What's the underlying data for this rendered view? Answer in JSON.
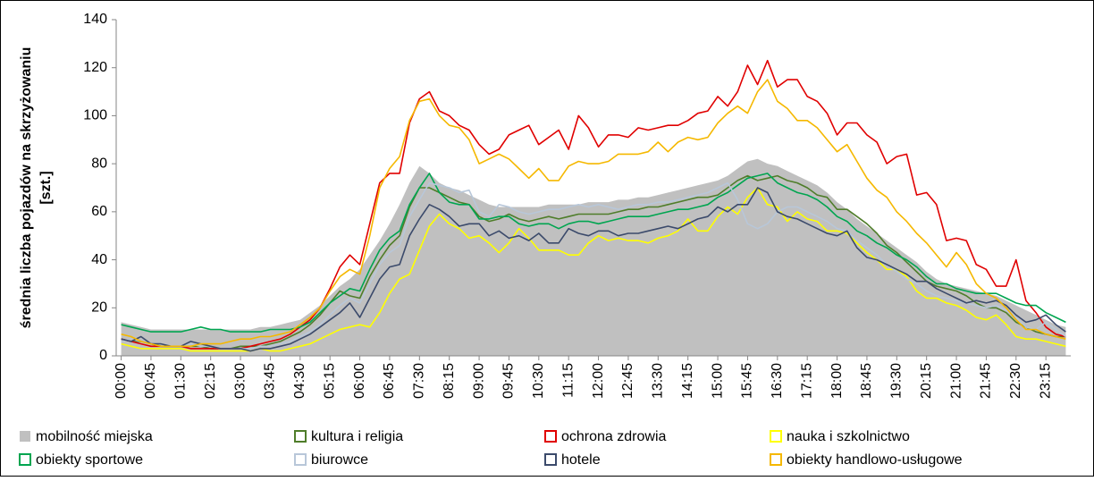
{
  "chart_data": {
    "type": "line",
    "y_label": [
      "średnia liczba pojazdów na skrzyżowaniu",
      "[szt.]"
    ],
    "ylim": [
      0,
      140
    ],
    "yticks": [
      0,
      20,
      40,
      60,
      80,
      100,
      120,
      140
    ],
    "grid": false,
    "legend": "bottom",
    "categories": [
      "00:00",
      null,
      null,
      "00:45",
      null,
      null,
      "01:30",
      null,
      null,
      "02:15",
      null,
      null,
      "03:00",
      null,
      null,
      "03:45",
      null,
      null,
      "04:30",
      null,
      null,
      "05:15",
      null,
      null,
      "06:00",
      null,
      null,
      "06:45",
      null,
      null,
      "07:30",
      null,
      null,
      "08:15",
      null,
      null,
      "09:00",
      null,
      null,
      "09:45",
      null,
      null,
      "10:30",
      null,
      null,
      "11:15",
      null,
      null,
      "12:00",
      null,
      null,
      "12:45",
      null,
      null,
      "13:30",
      null,
      null,
      "14:15",
      null,
      null,
      "15:00",
      null,
      null,
      "15:45",
      null,
      null,
      "16:30",
      null,
      null,
      "17:15",
      null,
      null,
      "18:00",
      null,
      null,
      "18:45",
      null,
      null,
      "19:30",
      null,
      null,
      "20:15",
      null,
      null,
      "21:00",
      null,
      null,
      "21:45",
      null,
      null,
      "22:30",
      null,
      null,
      "23:15",
      null,
      null
    ],
    "series": [
      {
        "name": "mobilność miejska",
        "type": "area",
        "color": "#c0c0c0",
        "values": [
          14,
          13,
          12,
          11,
          11,
          11,
          11,
          11,
          11,
          11,
          11,
          11,
          11,
          11,
          12,
          12,
          13,
          14,
          15,
          18,
          21,
          25,
          29,
          32,
          36,
          42,
          48,
          55,
          63,
          72,
          79,
          76,
          72,
          70,
          69,
          67,
          65,
          63,
          62,
          62,
          62,
          62,
          62,
          63,
          63,
          63,
          63,
          64,
          64,
          64,
          65,
          65,
          66,
          66,
          67,
          68,
          69,
          70,
          71,
          72,
          73,
          75,
          78,
          81,
          82,
          80,
          79,
          77,
          75,
          73,
          71,
          68,
          64,
          61,
          57,
          54,
          51,
          48,
          45,
          42,
          39,
          35,
          32,
          30,
          29,
          28,
          27,
          26,
          25,
          23,
          21,
          19,
          17,
          15,
          13,
          12
        ]
      },
      {
        "name": "kultura i religia",
        "type": "line",
        "color": "#4f7d2a",
        "values": [
          7,
          6,
          6,
          5,
          4,
          4,
          4,
          4,
          4,
          3,
          3,
          3,
          4,
          4,
          4,
          5,
          6,
          8,
          10,
          13,
          17,
          22,
          27,
          25,
          24,
          33,
          40,
          46,
          50,
          62,
          70,
          70,
          68,
          66,
          64,
          63,
          58,
          56,
          57,
          59,
          57,
          56,
          57,
          58,
          57,
          58,
          59,
          59,
          59,
          59,
          60,
          61,
          61,
          62,
          62,
          63,
          64,
          65,
          66,
          66,
          67,
          70,
          73,
          75,
          73,
          74,
          75,
          73,
          72,
          70,
          67,
          66,
          61,
          61,
          58,
          55,
          51,
          46,
          43,
          39,
          35,
          31,
          29,
          28,
          27,
          25,
          22,
          20,
          20,
          18,
          14,
          12,
          10,
          9,
          8,
          8
        ]
      },
      {
        "name": "ochrona zdrowia",
        "type": "line",
        "color": "#e00000",
        "values": [
          7,
          6,
          5,
          4,
          4,
          4,
          4,
          3,
          3,
          3,
          3,
          3,
          3,
          4,
          5,
          6,
          7,
          9,
          12,
          15,
          20,
          28,
          37,
          42,
          38,
          55,
          72,
          76,
          76,
          97,
          107,
          110,
          102,
          100,
          96,
          94,
          88,
          84,
          86,
          92,
          94,
          96,
          88,
          91,
          94,
          86,
          100,
          95,
          87,
          92,
          92,
          91,
          95,
          94,
          95,
          96,
          96,
          98,
          101,
          102,
          108,
          104,
          110,
          121,
          113,
          123,
          112,
          115,
          115,
          108,
          106,
          101,
          92,
          97,
          97,
          92,
          89,
          80,
          83,
          84,
          67,
          68,
          63,
          48,
          49,
          48,
          38,
          36,
          29,
          29,
          40,
          23,
          18,
          12,
          9,
          8
        ]
      },
      {
        "name": "nauka i szkolnictwo",
        "type": "line",
        "color": "#ffff00",
        "values": [
          5,
          4,
          3,
          3,
          3,
          3,
          3,
          2,
          2,
          2,
          2,
          2,
          2,
          2,
          3,
          2,
          2,
          3,
          4,
          5,
          7,
          9,
          11,
          12,
          13,
          12,
          18,
          26,
          32,
          34,
          44,
          54,
          59,
          55,
          53,
          49,
          50,
          47,
          43,
          47,
          53,
          49,
          44,
          44,
          44,
          42,
          42,
          47,
          50,
          48,
          49,
          48,
          48,
          47,
          49,
          50,
          52,
          57,
          52,
          52,
          58,
          62,
          59,
          66,
          70,
          63,
          62,
          56,
          60,
          57,
          56,
          52,
          52,
          51,
          47,
          43,
          40,
          36,
          36,
          33,
          27,
          24,
          24,
          22,
          21,
          19,
          16,
          15,
          17,
          13,
          8,
          7,
          7,
          6,
          5,
          4
        ]
      },
      {
        "name": "obiekty sportowe",
        "type": "line",
        "color": "#00a550",
        "values": [
          13,
          12,
          11,
          10,
          10,
          10,
          10,
          11,
          12,
          11,
          11,
          10,
          10,
          10,
          10,
          11,
          11,
          11,
          12,
          14,
          18,
          22,
          25,
          28,
          27,
          36,
          44,
          49,
          52,
          63,
          70,
          76,
          68,
          64,
          63,
          63,
          57,
          57,
          58,
          58,
          55,
          54,
          55,
          55,
          53,
          55,
          56,
          56,
          55,
          56,
          57,
          58,
          58,
          58,
          59,
          60,
          61,
          61,
          62,
          63,
          66,
          68,
          71,
          74,
          75,
          76,
          72,
          70,
          68,
          67,
          65,
          62,
          58,
          56,
          52,
          50,
          47,
          45,
          42,
          40,
          37,
          33,
          30,
          30,
          28,
          27,
          26,
          26,
          26,
          24,
          22,
          21,
          21,
          18,
          16,
          14
        ]
      },
      {
        "name": "biurowce",
        "type": "line",
        "color": "#b8c7d9",
        "values": [
          6,
          7,
          6,
          5,
          5,
          4,
          4,
          5,
          4,
          4,
          3,
          3,
          3,
          3,
          4,
          4,
          5,
          6,
          8,
          10,
          13,
          17,
          21,
          24,
          22,
          30,
          38,
          43,
          46,
          58,
          65,
          72,
          71,
          70,
          68,
          69,
          60,
          58,
          63,
          62,
          60,
          59,
          60,
          61,
          61,
          62,
          63,
          62,
          63,
          62,
          61,
          62,
          63,
          63,
          64,
          64,
          65,
          66,
          67,
          68,
          70,
          72,
          65,
          55,
          53,
          55,
          60,
          62,
          62,
          60,
          58,
          56,
          53,
          52,
          48,
          45,
          42,
          38,
          35,
          32,
          30,
          27,
          25,
          24,
          23,
          22,
          21,
          20,
          21,
          19,
          16,
          12,
          11,
          14,
          11,
          8
        ]
      },
      {
        "name": "hotele",
        "type": "line",
        "color": "#3b4a6b",
        "values": [
          7,
          6,
          8,
          5,
          5,
          4,
          4,
          6,
          5,
          4,
          3,
          3,
          3,
          2,
          3,
          3,
          4,
          5,
          7,
          9,
          12,
          15,
          18,
          22,
          16,
          24,
          32,
          37,
          38,
          50,
          57,
          63,
          61,
          58,
          54,
          55,
          55,
          50,
          52,
          49,
          50,
          48,
          51,
          47,
          47,
          53,
          51,
          50,
          52,
          52,
          50,
          51,
          51,
          52,
          53,
          54,
          53,
          55,
          57,
          58,
          62,
          60,
          63,
          63,
          70,
          68,
          60,
          58,
          57,
          55,
          53,
          51,
          50,
          52,
          45,
          41,
          40,
          38,
          36,
          34,
          31,
          31,
          28,
          26,
          24,
          22,
          23,
          22,
          23,
          21,
          17,
          14,
          15,
          17,
          13,
          10
        ]
      },
      {
        "name": "obiekty handlowo-usługowe",
        "type": "line",
        "color": "#f5b800",
        "values": [
          9,
          8,
          6,
          5,
          4,
          4,
          4,
          4,
          5,
          5,
          5,
          6,
          7,
          7,
          8,
          8,
          9,
          10,
          13,
          16,
          20,
          27,
          33,
          36,
          34,
          50,
          70,
          78,
          83,
          98,
          106,
          107,
          100,
          96,
          95,
          90,
          80,
          82,
          84,
          82,
          78,
          74,
          78,
          73,
          73,
          79,
          81,
          80,
          80,
          81,
          84,
          84,
          84,
          85,
          89,
          85,
          89,
          91,
          90,
          91,
          97,
          101,
          104,
          101,
          110,
          115,
          106,
          103,
          98,
          98,
          95,
          90,
          85,
          88,
          81,
          74,
          69,
          66,
          60,
          56,
          51,
          47,
          42,
          37,
          43,
          38,
          30,
          26,
          24,
          20,
          15,
          11,
          11,
          9,
          8,
          7
        ]
      }
    ]
  }
}
